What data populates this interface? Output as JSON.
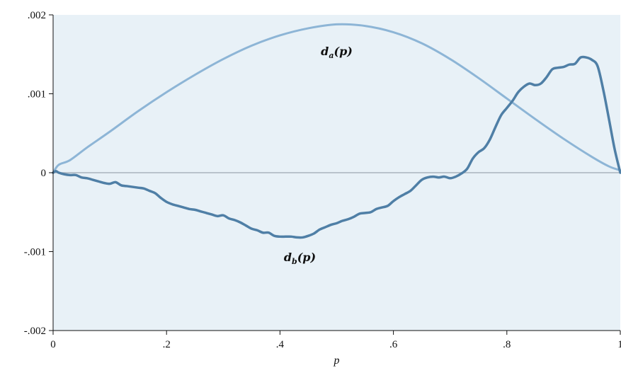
{
  "chart_data": {
    "type": "line",
    "title": "",
    "xlabel": "p",
    "ylabel": "",
    "xlim": [
      0,
      1
    ],
    "ylim": [
      -0.002,
      0.002
    ],
    "grid": false,
    "x_ticks": [
      {
        "value": 0,
        "label": "0"
      },
      {
        "value": 0.2,
        "label": ".2"
      },
      {
        "value": 0.4,
        "label": ".4"
      },
      {
        "value": 0.6,
        "label": ".6"
      },
      {
        "value": 0.8,
        "label": ".8"
      },
      {
        "value": 1,
        "label": "1"
      }
    ],
    "y_ticks": [
      {
        "value": 0.002,
        "label": ".002"
      },
      {
        "value": 0.001,
        "label": ".001"
      },
      {
        "value": 0,
        "label": "0"
      },
      {
        "value": -0.001,
        "label": "-.001"
      },
      {
        "value": -0.002,
        "label": "-.002"
      }
    ],
    "colors": {
      "plot_background": "#e8f1f7",
      "zero_line": "#a9b4bd",
      "axis": "#111111"
    },
    "series": [
      {
        "annotation": {
          "base": "d",
          "sub": "a",
          "suffix": "(p)",
          "x": 0.5,
          "y": 0.00149
        },
        "color": "#8db5d6",
        "x": [
          0,
          0.01,
          0.03,
          0.06,
          0.1,
          0.15,
          0.2,
          0.25,
          0.3,
          0.35,
          0.4,
          0.45,
          0.5,
          0.55,
          0.6,
          0.65,
          0.7,
          0.75,
          0.8,
          0.85,
          0.9,
          0.95,
          0.98,
          1.0
        ],
        "y": [
          0,
          0.0001,
          0.00016,
          0.00032,
          0.00052,
          0.00078,
          0.00102,
          0.00124,
          0.00144,
          0.00161,
          0.00174,
          0.00183,
          0.00188,
          0.00186,
          0.00178,
          0.00164,
          0.00144,
          0.0012,
          0.00094,
          0.00068,
          0.00043,
          0.0002,
          8e-05,
          3e-05
        ]
      },
      {
        "annotation": {
          "base": "d",
          "sub": "b",
          "suffix": "(p)",
          "x": 0.435,
          "y": -0.00112
        },
        "color": "#4f7fa6",
        "x": [
          0,
          0.005,
          0.01,
          0.02,
          0.03,
          0.04,
          0.05,
          0.06,
          0.07,
          0.08,
          0.09,
          0.1,
          0.11,
          0.12,
          0.13,
          0.14,
          0.15,
          0.16,
          0.17,
          0.18,
          0.19,
          0.2,
          0.21,
          0.22,
          0.23,
          0.24,
          0.25,
          0.26,
          0.27,
          0.28,
          0.29,
          0.3,
          0.31,
          0.32,
          0.33,
          0.34,
          0.35,
          0.36,
          0.37,
          0.38,
          0.39,
          0.4,
          0.41,
          0.42,
          0.43,
          0.44,
          0.45,
          0.46,
          0.47,
          0.48,
          0.49,
          0.5,
          0.51,
          0.52,
          0.53,
          0.54,
          0.55,
          0.56,
          0.57,
          0.58,
          0.59,
          0.6,
          0.61,
          0.62,
          0.63,
          0.64,
          0.65,
          0.66,
          0.67,
          0.68,
          0.69,
          0.7,
          0.71,
          0.72,
          0.73,
          0.74,
          0.75,
          0.76,
          0.77,
          0.78,
          0.79,
          0.8,
          0.81,
          0.82,
          0.83,
          0.84,
          0.85,
          0.86,
          0.87,
          0.88,
          0.89,
          0.9,
          0.91,
          0.92,
          0.93,
          0.94,
          0.95,
          0.96,
          0.97,
          0.98,
          0.99,
          1.0
        ],
        "y": [
          0,
          2e-05,
          0,
          -2e-05,
          -3e-05,
          -3e-05,
          -6e-05,
          -7e-05,
          -9e-05,
          -0.00011,
          -0.00013,
          -0.00014,
          -0.00012,
          -0.00016,
          -0.00017,
          -0.00018,
          -0.00019,
          -0.0002,
          -0.00023,
          -0.00026,
          -0.00032,
          -0.00037,
          -0.0004,
          -0.00042,
          -0.00044,
          -0.00046,
          -0.00047,
          -0.00049,
          -0.00051,
          -0.00053,
          -0.00055,
          -0.00054,
          -0.00058,
          -0.0006,
          -0.00063,
          -0.00067,
          -0.00071,
          -0.00073,
          -0.00076,
          -0.00076,
          -0.0008,
          -0.00081,
          -0.00081,
          -0.00081,
          -0.00082,
          -0.00082,
          -0.0008,
          -0.00077,
          -0.00072,
          -0.00069,
          -0.00066,
          -0.00064,
          -0.00061,
          -0.00059,
          -0.00056,
          -0.00052,
          -0.00051,
          -0.0005,
          -0.00046,
          -0.00044,
          -0.00042,
          -0.00036,
          -0.00031,
          -0.00027,
          -0.00023,
          -0.00016,
          -9e-05,
          -6e-05,
          -5e-05,
          -6e-05,
          -5e-05,
          -7e-05,
          -5e-05,
          -1e-05,
          5e-05,
          0.00018,
          0.00026,
          0.00031,
          0.00042,
          0.00058,
          0.00073,
          0.00082,
          0.00091,
          0.00102,
          0.00109,
          0.00113,
          0.00111,
          0.00113,
          0.00121,
          0.00131,
          0.00133,
          0.00134,
          0.00137,
          0.00138,
          0.00146,
          0.00146,
          0.00143,
          0.00135,
          0.00105,
          0.00068,
          0.0003,
          0.0
        ]
      }
    ]
  }
}
